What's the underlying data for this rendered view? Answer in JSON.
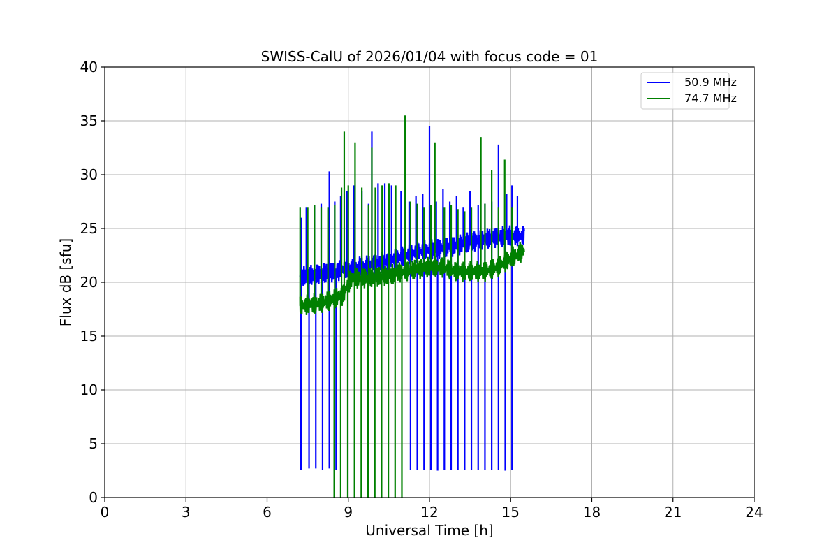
{
  "chart_data": {
    "type": "line",
    "title": "SWISS-CalU of 2026/01/04 with focus code = 01",
    "xlabel": "Universal Time [h]",
    "ylabel": "Flux dB [sfu]",
    "xlim": [
      0,
      24
    ],
    "ylim": [
      0,
      40
    ],
    "xticks": [
      0,
      3,
      6,
      9,
      12,
      15,
      18,
      21,
      24
    ],
    "yticks": [
      0,
      5,
      10,
      15,
      20,
      25,
      30,
      35,
      40
    ],
    "grid": true,
    "legend_position": "top-right",
    "series": [
      {
        "name": "50.9 MHz",
        "color": "#0000ff",
        "x": [
          7.22,
          8.0,
          8.5,
          9.0,
          9.5,
          10.0,
          10.5,
          11.0,
          11.5,
          12.0,
          12.5,
          13.0,
          13.5,
          14.0,
          14.5,
          15.0,
          15.5
        ],
        "y": [
          20.5,
          20.8,
          21.0,
          21.3,
          21.5,
          21.7,
          22.0,
          22.4,
          22.8,
          23.0,
          23.2,
          23.4,
          23.7,
          24.0,
          24.2,
          24.3,
          24.3
        ],
        "spikes_x": [
          7.25,
          7.45,
          7.75,
          8.0,
          8.3,
          8.5,
          8.72,
          8.95,
          9.2,
          9.5,
          9.75,
          9.87,
          10.1,
          10.35,
          10.6,
          10.95,
          11.25,
          11.5,
          11.75,
          12.0,
          12.25,
          12.5,
          12.75,
          13.0,
          13.25,
          13.5,
          13.8,
          14.05,
          14.3,
          14.55,
          14.85,
          15.05,
          15.25
        ],
        "spikes_y": [
          26.0,
          27.0,
          27.2,
          27.3,
          30.3,
          27.5,
          28.0,
          28.5,
          29.0,
          28.5,
          27.3,
          34.0,
          29.2,
          29.2,
          29.0,
          28.5,
          27.5,
          28.0,
          28.2,
          34.5,
          27.5,
          28.7,
          27.5,
          28.0,
          27.0,
          28.5,
          27.2,
          27.3,
          27.5,
          32.8,
          28.2,
          29.0,
          28.0
        ],
        "dips_x": [
          7.25,
          7.55,
          7.8,
          8.05,
          8.3,
          8.55,
          11.3,
          11.55,
          11.8,
          12.05,
          12.3,
          12.55,
          12.8,
          13.05,
          13.3,
          13.55,
          13.8,
          14.05,
          14.3,
          14.55,
          14.8,
          15.05
        ],
        "dips_y": [
          2.6,
          2.7,
          2.7,
          2.6,
          2.7,
          2.6,
          2.6,
          2.6,
          2.6,
          2.6,
          2.5,
          2.6,
          2.6,
          2.6,
          2.6,
          2.6,
          2.6,
          2.6,
          2.6,
          2.6,
          2.5,
          2.6
        ]
      },
      {
        "name": "74.7 MHz",
        "color": "#008000",
        "x": [
          7.22,
          7.8,
          8.3,
          8.8,
          9.1,
          9.5,
          10.0,
          10.5,
          11.0,
          11.5,
          12.0,
          12.5,
          13.0,
          13.5,
          14.0,
          14.5,
          15.0,
          15.5
        ],
        "y": [
          17.8,
          18.0,
          18.3,
          18.8,
          20.3,
          20.4,
          20.5,
          20.6,
          21.0,
          21.2,
          21.4,
          21.4,
          21.0,
          21.0,
          21.0,
          21.4,
          22.2,
          23.0
        ],
        "spikes_x": [
          7.22,
          7.5,
          7.75,
          8.0,
          8.25,
          8.5,
          8.75,
          8.85,
          9.0,
          9.25,
          9.5,
          9.75,
          9.87,
          10.0,
          10.25,
          10.5,
          10.75,
          11.1,
          11.3,
          11.55,
          11.8,
          12.05,
          12.2,
          12.55,
          12.8,
          13.05,
          13.3,
          13.55,
          13.9,
          14.05,
          14.3,
          14.55,
          14.78,
          15.05
        ],
        "spikes_y": [
          27.0,
          27.0,
          27.2,
          27.0,
          27.0,
          27.2,
          28.8,
          34.0,
          29.0,
          33.0,
          28.8,
          27.2,
          32.5,
          28.8,
          29.0,
          29.2,
          29.0,
          35.5,
          27.5,
          27.3,
          27.0,
          27.2,
          33.0,
          27.0,
          27.2,
          26.8,
          26.6,
          27.0,
          33.5,
          27.3,
          30.4,
          27.0,
          31.4,
          27.0
        ],
        "dips_x": [
          8.48,
          8.72,
          8.98,
          9.23,
          9.48,
          9.73,
          9.98,
          10.23,
          10.48,
          10.73,
          10.98
        ],
        "dips_y": [
          0,
          0,
          0,
          0,
          0,
          0,
          0,
          0,
          0,
          0,
          0
        ]
      }
    ]
  }
}
